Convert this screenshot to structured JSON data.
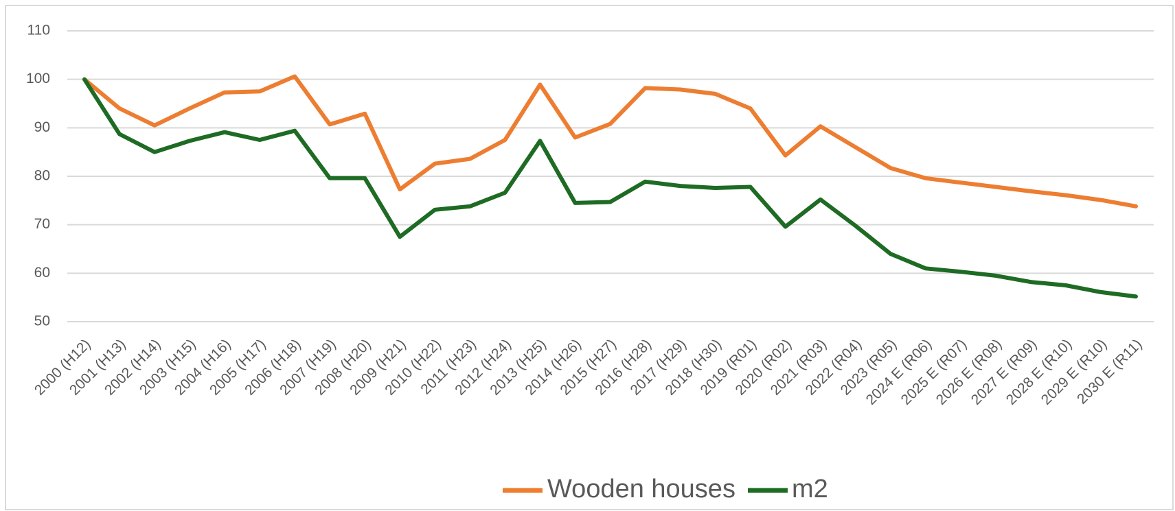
{
  "chart_data": {
    "type": "line",
    "categories": [
      "2000 (H12)",
      "2001 (H13)",
      "2002 (H14)",
      "2003 (H15)",
      "2004 (H16)",
      "2005 (H17)",
      "2006 (H18)",
      "2007 (H19)",
      "2008 (H20)",
      "2009 (H21)",
      "2010 (H22)",
      "2011 (H23)",
      "2012 (H24)",
      "2013 (H25)",
      "2014 (H26)",
      "2015 (H27)",
      "2016 (H28)",
      "2017 (H29)",
      "2018 (H30)",
      "2019 (R01)",
      "2020 (R02)",
      "2021 (R03)",
      "2022 (R04)",
      "2023 (R05)",
      "2024 E (R06)",
      "2025 E (R07)",
      "2026 E (R08)",
      "2027 E (R09)",
      "2028 E (R10)",
      "2029 E (R10)",
      "2030 E (R11)"
    ],
    "series": [
      {
        "name": "Wooden houses",
        "color": "#ed7d31",
        "values": [
          100,
          94,
          90.5,
          94,
          97.3,
          97.5,
          100.6,
          90.7,
          92.9,
          77.3,
          82.6,
          83.6,
          87.5,
          98.9,
          88,
          90.8,
          98.2,
          97.9,
          97,
          94,
          84.3,
          90.3,
          86,
          81.7,
          79.6,
          78.7,
          77.8,
          76.9,
          76.1,
          75.1,
          73.8
        ]
      },
      {
        "name": "m2",
        "color": "#1e6b24",
        "values": [
          100,
          88.7,
          85,
          87.3,
          89.1,
          87.5,
          89.4,
          79.6,
          79.6,
          67.5,
          73.1,
          73.8,
          76.6,
          87.3,
          74.5,
          74.7,
          78.9,
          78,
          77.6,
          77.8,
          69.6,
          75.2,
          69.8,
          64,
          61,
          60.3,
          59.5,
          58.2,
          57.5,
          56.1,
          55.2
        ]
      }
    ],
    "ylim": [
      50,
      110
    ],
    "yticks": [
      50,
      60,
      70,
      80,
      90,
      100,
      110
    ],
    "grid": true,
    "legend": "bottom"
  }
}
